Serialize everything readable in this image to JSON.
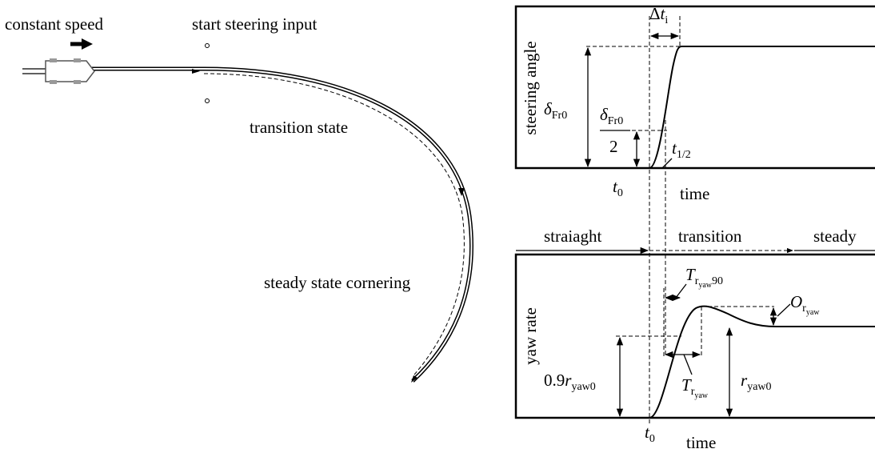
{
  "left": {
    "constant_speed": "constant speed",
    "start_steering": "start steering input",
    "transition_state": "transition state",
    "steady_cornering": "steady state cornering"
  },
  "top_plot": {
    "y_label": "steering angle",
    "x_label": "time",
    "delta_t": {
      "prefix": "Δ",
      "main": "t",
      "sub": "i"
    },
    "delta_fr0": {
      "main": "δ",
      "sub": "Fr0"
    },
    "half_delta": {
      "numerator": {
        "main": "δ",
        "sub": "Fr0"
      },
      "denominator": "2"
    },
    "t_half": {
      "main": "t",
      "sub": "1/2"
    },
    "t0": {
      "main": "t",
      "sub": "0"
    }
  },
  "phases": {
    "straight": "straiaght",
    "transition": "transition",
    "steady": "steady"
  },
  "bottom_plot": {
    "y_label": "yaw rate",
    "x_label": "time",
    "t_ryaw90": {
      "main": "T",
      "sub": "r",
      "subsub": "yaw",
      "tail": "90"
    },
    "o_ryaw": {
      "main": "O",
      "sub": "r",
      "subsub": "yaw"
    },
    "t_ryaw": {
      "main": "T",
      "sub": "r",
      "subsub": "yaw"
    },
    "r_yaw0": {
      "main": "r",
      "sub": "yaw0"
    },
    "r_yaw0_90": {
      "prefix": "0.9",
      "main": "r",
      "sub": "yaw0"
    },
    "t0": {
      "main": "t",
      "sub": "0"
    }
  }
}
